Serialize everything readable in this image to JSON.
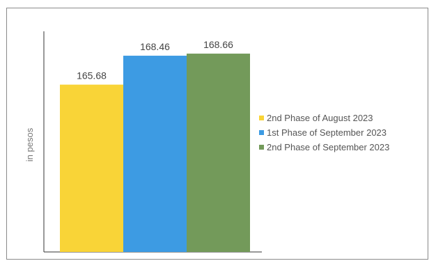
{
  "chart_data": {
    "type": "bar",
    "ylabel": "in pesos",
    "series": [
      {
        "name": "2nd Phase of August 2023",
        "value": 165.68,
        "label": "165.68",
        "color": "#f9d437"
      },
      {
        "name": "1st Phase of September 2023",
        "value": 168.46,
        "label": "168.46",
        "color": "#3d9be3"
      },
      {
        "name": "2nd Phase of September 2023",
        "value": 168.66,
        "label": "168.66",
        "color": "#739a5a"
      }
    ],
    "ylim": [
      149.6,
      170
    ],
    "legend_position": "right",
    "grid": false
  }
}
